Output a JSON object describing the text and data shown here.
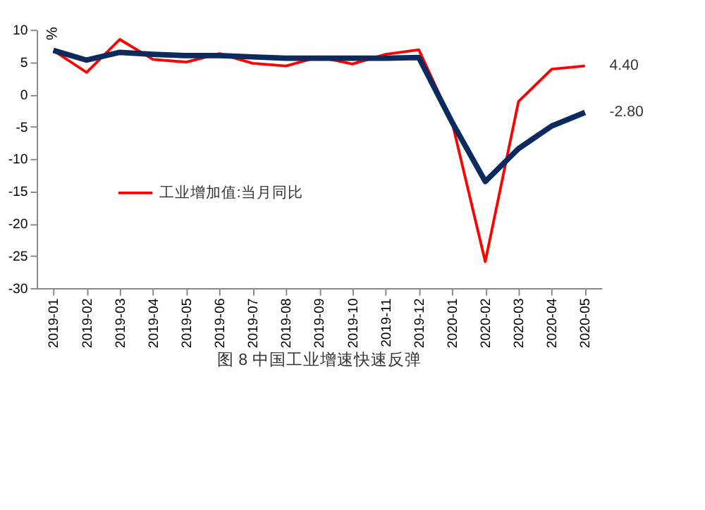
{
  "chart_data": {
    "type": "line",
    "title": "图 8  中国工业增速快速反弹",
    "ylabel": "%",
    "categories": [
      "2019-01",
      "2019-02",
      "2019-03",
      "2019-04",
      "2019-05",
      "2019-06",
      "2019-07",
      "2019-08",
      "2019-09",
      "2019-10",
      "2019-11",
      "2019-12",
      "2020-01",
      "2020-02",
      "2020-03",
      "2020-04",
      "2020-05"
    ],
    "series": [
      {
        "name": "工业增加值:当月同比",
        "color": "#ff0000",
        "values": [
          6.8,
          3.4,
          8.5,
          5.4,
          5.0,
          6.3,
          4.8,
          4.4,
          5.8,
          4.7,
          6.2,
          6.9,
          -4.3,
          -25.9,
          -1.1,
          3.9,
          4.4
        ],
        "value_labels": [
          null,
          null,
          null,
          null,
          null,
          null,
          null,
          null,
          null,
          null,
          null,
          null,
          null,
          null,
          null,
          null,
          "4.40"
        ]
      },
      {
        "color": "#0b2a5e",
        "values": [
          6.8,
          5.3,
          6.5,
          6.2,
          6.0,
          6.0,
          5.8,
          5.6,
          5.6,
          5.6,
          5.6,
          5.7,
          -4.3,
          -13.5,
          -8.4,
          -4.9,
          -2.8
        ],
        "value_labels": [
          null,
          null,
          null,
          null,
          null,
          null,
          null,
          null,
          null,
          null,
          null,
          null,
          null,
          null,
          null,
          null,
          "-2.80"
        ]
      }
    ],
    "ylim": [
      -30,
      10
    ],
    "yticks": [
      -30,
      -25,
      -20,
      -15,
      -10,
      -5,
      0,
      5,
      10
    ],
    "grid": false,
    "legend": "bottom left"
  }
}
